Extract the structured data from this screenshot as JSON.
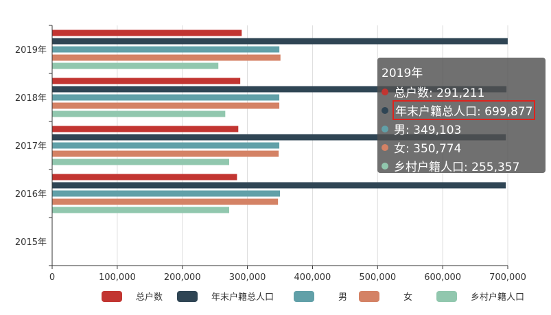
{
  "chart_data": {
    "type": "bar",
    "orientation": "horizontal",
    "categories": [
      "2015年",
      "2016年",
      "2017年",
      "2018年",
      "2019年"
    ],
    "series": [
      {
        "name": "总户数",
        "color": "#c23531",
        "values": [
          null,
          284000,
          286000,
          289000,
          291211
        ]
      },
      {
        "name": "年末户籍总人口",
        "color": "#2f4554",
        "values": [
          null,
          697000,
          697000,
          698000,
          699877
        ]
      },
      {
        "name": "男",
        "color": "#61a0a8",
        "values": [
          null,
          350000,
          349000,
          349000,
          349103
        ]
      },
      {
        "name": "女",
        "color": "#d48265",
        "values": [
          null,
          347000,
          348000,
          349000,
          350774
        ]
      },
      {
        "name": "乡村户籍人口",
        "color": "#91c7ae",
        "values": [
          null,
          272000,
          272000,
          266000,
          255357
        ]
      }
    ],
    "xlim": [
      0,
      700000
    ],
    "x_ticks": [
      "0",
      "100,000",
      "200,000",
      "300,000",
      "400,000",
      "500,000",
      "600,000",
      "700,000"
    ],
    "grid": true,
    "legend_position": "bottom"
  },
  "tooltip": {
    "title": "2019年",
    "rows": [
      {
        "label": "总户数: 291,211",
        "color": "#c23531",
        "highlight": false
      },
      {
        "label": "年末户籍总人口: 699,877",
        "color": "#2f4554",
        "highlight": true
      },
      {
        "label": "男: 349,103",
        "color": "#61a0a8",
        "highlight": false
      },
      {
        "label": "女: 350,774",
        "color": "#d48265",
        "highlight": false
      },
      {
        "label": "乡村户籍人口: 255,357",
        "color": "#91c7ae",
        "highlight": false
      }
    ]
  }
}
